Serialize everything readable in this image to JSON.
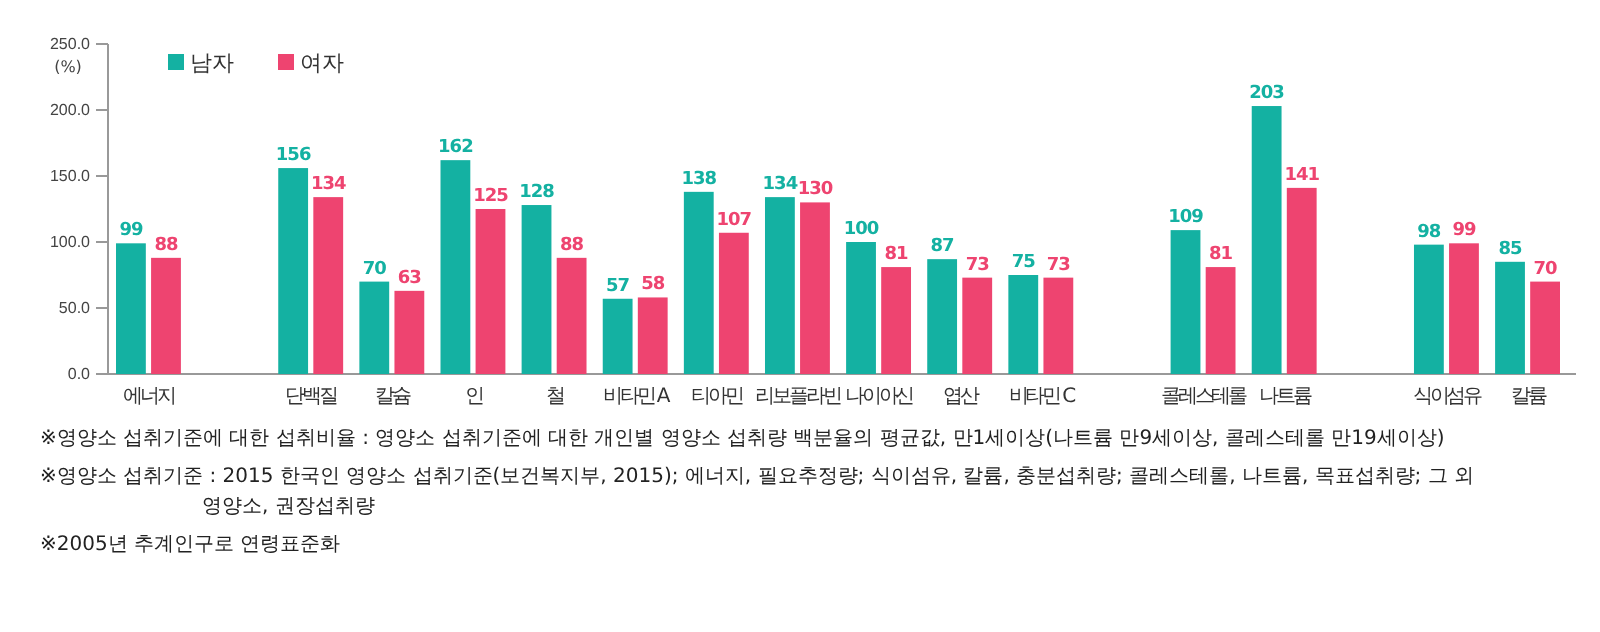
{
  "chart_data": {
    "type": "bar",
    "ylabel": "(%)",
    "categories": [
      "에너지",
      null,
      "단백질",
      "칼슘",
      "인",
      "철",
      "비타민 A",
      "티아민",
      "리보플라빈",
      "나이아신",
      "엽산",
      "비타민 C",
      null,
      "콜레스테롤",
      "나트륨",
      null,
      "식이섬유",
      "칼륨"
    ],
    "series": [
      {
        "name": "남자",
        "color": "#14b1a2",
        "values": [
          99,
          null,
          156,
          70,
          162,
          128,
          57,
          138,
          134,
          100,
          87,
          75,
          null,
          109,
          203,
          null,
          98,
          85
        ]
      },
      {
        "name": "여자",
        "color": "#ee4470",
        "values": [
          88,
          null,
          134,
          63,
          125,
          88,
          58,
          107,
          130,
          81,
          73,
          73,
          null,
          81,
          141,
          null,
          99,
          70
        ]
      }
    ],
    "ylim": [
      0,
      250
    ],
    "yticks": [
      {
        "value": 0,
        "label": "0.0"
      },
      {
        "value": 50,
        "label": "50.0"
      },
      {
        "value": 100,
        "label": "100.0"
      },
      {
        "value": 150,
        "label": "150.0"
      },
      {
        "value": 200,
        "label": "200.0"
      },
      {
        "value": 250,
        "label": "250.0"
      }
    ],
    "data_labels": true,
    "legend": "top left",
    "grid": false,
    "annotations": [
      "※영양소 섭취기준에 대한 섭취비율 : 영양소 섭취기준에 대한 개인별 영양소 섭취량 백분율의 평균값, 만1세이상(나트륨 만9세이상, 콜레스테롤 만19세이상)",
      "※영양소 섭취기준 : 2015 한국인 영양소 섭취기준(보건복지부, 2015); 에너지, 필요추정량; 식이섬유, 칼륨, 충분섭취량; 콜레스테롤, 나트륨, 목표섭취량; 그 외 영양소, 권장섭취량",
      "※2005년 추계인구로 연령표준화"
    ]
  }
}
